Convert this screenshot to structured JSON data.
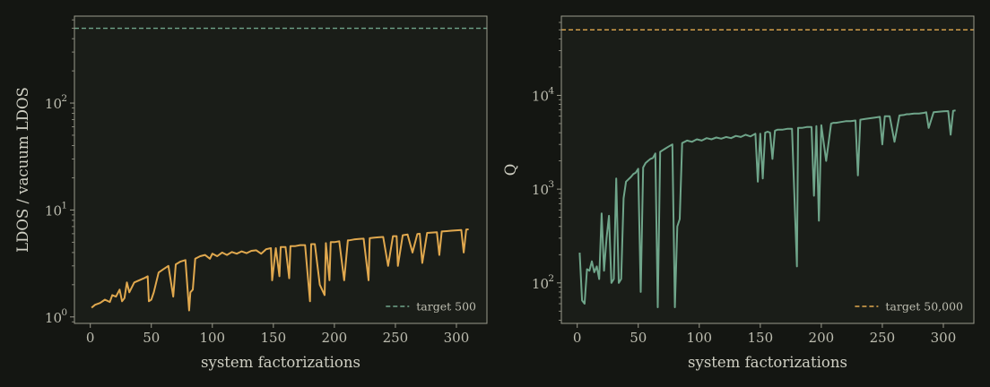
{
  "chart_data": [
    {
      "type": "line",
      "xlabel": "system factorizations",
      "ylabel": "LDOS / vacuum LDOS",
      "yscale": "log",
      "xlim": [
        -13,
        325
      ],
      "ylim": [
        0.87,
        650
      ],
      "xticks": [
        0,
        50,
        100,
        150,
        200,
        250,
        300
      ],
      "xtick_labels": [
        "0",
        "50",
        "100",
        "150",
        "200",
        "250",
        "300"
      ],
      "yticks": [
        1,
        10,
        100
      ],
      "ytick_labels": [
        "10",
        "10",
        "10"
      ],
      "ytick_exps": [
        "0",
        "1",
        "2"
      ],
      "grid": false,
      "legend_position": "lower right",
      "series": [
        {
          "color": "#e0a84e",
          "x": [
            1,
            4,
            8,
            12,
            16,
            18,
            21,
            24,
            26,
            28,
            30,
            32,
            36,
            40,
            44,
            47,
            48,
            50,
            52,
            56,
            60,
            64,
            68,
            70,
            72,
            74,
            78,
            81,
            82,
            84,
            86,
            88,
            90,
            94,
            98,
            100,
            104,
            108,
            112,
            116,
            120,
            124,
            128,
            132,
            136,
            140,
            144,
            148,
            149,
            152,
            155,
            156,
            160,
            163,
            164,
            168,
            172,
            176,
            180,
            181,
            184,
            188,
            192,
            193,
            196,
            197,
            200,
            204,
            208,
            211,
            212,
            216,
            220,
            224,
            228,
            229,
            232,
            236,
            240,
            244,
            248,
            251,
            252,
            256,
            260,
            264,
            268,
            270,
            272,
            276,
            280,
            284,
            286,
            288,
            292,
            296,
            300,
            304,
            306,
            308,
            310
          ],
          "y": [
            1.22,
            1.3,
            1.35,
            1.45,
            1.38,
            1.6,
            1.55,
            1.8,
            1.4,
            1.5,
            2.1,
            1.7,
            2.1,
            2.2,
            2.3,
            2.4,
            1.4,
            1.45,
            1.7,
            2.6,
            2.8,
            3.0,
            1.55,
            3.1,
            3.2,
            3.3,
            3.4,
            1.15,
            1.7,
            1.8,
            3.5,
            3.6,
            3.7,
            3.8,
            3.5,
            3.9,
            3.7,
            4.0,
            3.8,
            4.05,
            3.9,
            4.1,
            3.95,
            4.15,
            4.2,
            3.9,
            4.3,
            4.4,
            2.2,
            4.4,
            2.4,
            4.5,
            4.5,
            2.3,
            4.6,
            4.6,
            4.7,
            4.7,
            1.4,
            4.8,
            4.8,
            2.0,
            1.6,
            4.9,
            2.2,
            5.0,
            5.0,
            5.1,
            2.2,
            5.2,
            5.2,
            5.3,
            5.35,
            5.4,
            2.2,
            5.45,
            5.5,
            5.55,
            5.6,
            3.0,
            5.7,
            5.7,
            3.0,
            5.8,
            5.9,
            4.0,
            5.95,
            6.0,
            3.2,
            6.1,
            6.15,
            6.2,
            3.8,
            6.3,
            6.35,
            6.4,
            6.45,
            6.5,
            4.0,
            6.55,
            6.6
          ]
        }
      ],
      "target_line": {
        "value": 500,
        "label": "target 500",
        "color": "#6fa58a"
      }
    },
    {
      "type": "line",
      "xlabel": "system factorizations",
      "ylabel": "Q",
      "yscale": "log",
      "xlim": [
        -13,
        325
      ],
      "ylim": [
        37,
        70000
      ],
      "xticks": [
        0,
        50,
        100,
        150,
        200,
        250,
        300
      ],
      "xtick_labels": [
        "0",
        "50",
        "100",
        "150",
        "200",
        "250",
        "300"
      ],
      "yticks": [
        100,
        1000,
        10000
      ],
      "ytick_labels": [
        "10",
        "10",
        "10"
      ],
      "ytick_exps": [
        "2",
        "3",
        "4"
      ],
      "grid": false,
      "legend_position": "lower right",
      "series": [
        {
          "color": "#6fa58a",
          "x": [
            2,
            4,
            6,
            8,
            10,
            12,
            14,
            16,
            18,
            20,
            22,
            24,
            26,
            28,
            30,
            32,
            34,
            36,
            38,
            40,
            44,
            46,
            48,
            50,
            52,
            54,
            56,
            58,
            60,
            62,
            64,
            66,
            68,
            70,
            72,
            74,
            76,
            78,
            80,
            82,
            84,
            86,
            88,
            90,
            94,
            98,
            102,
            106,
            110,
            114,
            118,
            122,
            126,
            130,
            134,
            138,
            142,
            146,
            148,
            150,
            152,
            154,
            156,
            158,
            160,
            162,
            164,
            168,
            172,
            176,
            180,
            181,
            184,
            188,
            192,
            194,
            196,
            198,
            200,
            204,
            208,
            210,
            212,
            216,
            220,
            224,
            228,
            230,
            232,
            236,
            240,
            244,
            248,
            250,
            252,
            256,
            260,
            264,
            268,
            270,
            272,
            276,
            280,
            284,
            286,
            288,
            292,
            296,
            300,
            304,
            306,
            308,
            310
          ],
          "y": [
            210,
            65,
            60,
            140,
            135,
            170,
            130,
            150,
            110,
            550,
            135,
            300,
            520,
            100,
            110,
            1300,
            100,
            110,
            800,
            1200,
            1350,
            1450,
            1500,
            1650,
            80,
            1700,
            1900,
            2000,
            2100,
            2150,
            2400,
            55,
            2500,
            2600,
            2700,
            2800,
            2900,
            3000,
            55,
            400,
            480,
            3100,
            3200,
            3300,
            3200,
            3400,
            3300,
            3500,
            3400,
            3550,
            3450,
            3600,
            3500,
            3700,
            3600,
            3800,
            3650,
            3900,
            1200,
            3900,
            1300,
            4000,
            4100,
            4000,
            2100,
            4200,
            4300,
            4300,
            4400,
            4400,
            150,
            4500,
            4500,
            4600,
            4600,
            850,
            4700,
            460,
            4800,
            2000,
            5000,
            5100,
            5100,
            5200,
            5300,
            5300,
            5400,
            1400,
            5500,
            5600,
            5700,
            5800,
            5900,
            3000,
            6000,
            6000,
            3200,
            6100,
            6200,
            6300,
            6300,
            6400,
            6400,
            6500,
            6600,
            4500,
            6600,
            6700,
            6750,
            6800,
            3800,
            6850,
            6900
          ],
          "note": ""
        }
      ],
      "target_line": {
        "value": 50000,
        "label": "target 50,000",
        "color": "#e0a84e"
      }
    }
  ]
}
